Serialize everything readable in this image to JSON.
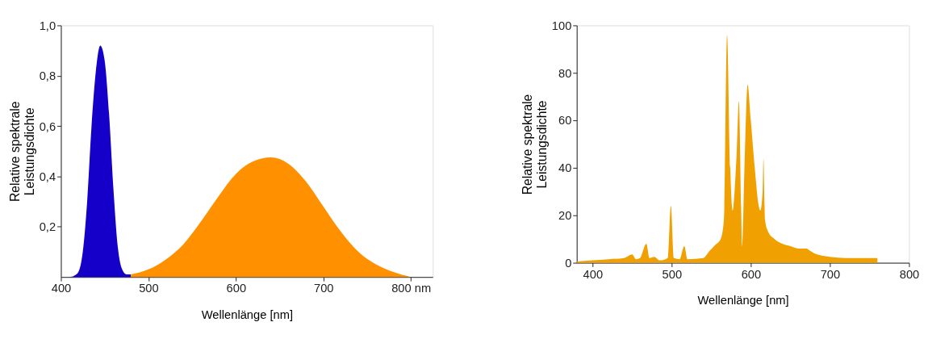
{
  "chart_data": [
    {
      "type": "area",
      "xlabel": "Wellenlänge [nm]",
      "ylabel": "Relative spektrale\nLeistungsdichte",
      "xlim": [
        400,
        825
      ],
      "xticks": [
        400,
        500,
        600,
        700,
        {
          "value": 800,
          "label": "800 nm"
        }
      ],
      "ylim": [
        0,
        1.0
      ],
      "yticks": [
        {
          "value": 0.2,
          "label": "0,2"
        },
        {
          "value": 0.4,
          "label": "0,4"
        },
        {
          "value": 0.6,
          "label": "0,6"
        },
        {
          "value": 0.8,
          "label": "0,8"
        },
        {
          "value": 1.0,
          "label": "1,0"
        }
      ],
      "grid": false,
      "series": [
        {
          "color": "#1400c8",
          "x": [
            410,
            415,
            420,
            425,
            430,
            435,
            440,
            445,
            450,
            455,
            460,
            465,
            470,
            475,
            480
          ],
          "values": [
            0,
            0.005,
            0.02,
            0.1,
            0.3,
            0.6,
            0.82,
            0.92,
            0.86,
            0.65,
            0.35,
            0.12,
            0.03,
            0.01,
            0.01
          ]
        },
        {
          "color": "#ff9000",
          "x": [
            480,
            500,
            520,
            540,
            560,
            580,
            600,
            620,
            640,
            660,
            680,
            700,
            720,
            740,
            760,
            780,
            800
          ],
          "values": [
            0.01,
            0.03,
            0.07,
            0.13,
            0.22,
            0.32,
            0.41,
            0.46,
            0.475,
            0.45,
            0.38,
            0.28,
            0.18,
            0.1,
            0.05,
            0.02,
            0
          ]
        }
      ]
    },
    {
      "type": "area",
      "xlabel": "Wellenlänge [nm]",
      "ylabel": "Relative spektrale\nLeistungsdichte",
      "xlim": [
        380,
        800
      ],
      "xticks": [
        400,
        500,
        600,
        700,
        800
      ],
      "ylim": [
        0,
        100
      ],
      "yticks": [
        0,
        20,
        40,
        60,
        80,
        100
      ],
      "grid": false,
      "series": [
        {
          "color": "#f0a000",
          "x": [
            380,
            400,
            420,
            440,
            450,
            455,
            460,
            468,
            472,
            478,
            485,
            495,
            499,
            503,
            510,
            516,
            520,
            540,
            548,
            555,
            562,
            566,
            570,
            574,
            577,
            582,
            585,
            588,
            589,
            592,
            596,
            600,
            605,
            610,
            612,
            615,
            616,
            618,
            622,
            630,
            640,
            650,
            660,
            670,
            675,
            680,
            690,
            700,
            720,
            740,
            760
          ],
          "values": [
            0.5,
            1,
            1.5,
            2,
            3.5,
            1.5,
            2,
            8,
            2,
            2.5,
            1,
            2,
            24,
            2,
            1.5,
            7,
            1.5,
            2,
            5,
            7.5,
            10,
            18,
            96,
            40,
            22,
            45,
            68,
            20,
            7,
            40,
            75,
            60,
            40,
            24,
            22,
            30,
            44,
            18,
            13,
            10,
            8,
            7,
            6,
            6,
            5,
            4,
            3,
            2.5,
            2,
            2,
            2
          ]
        }
      ]
    }
  ]
}
